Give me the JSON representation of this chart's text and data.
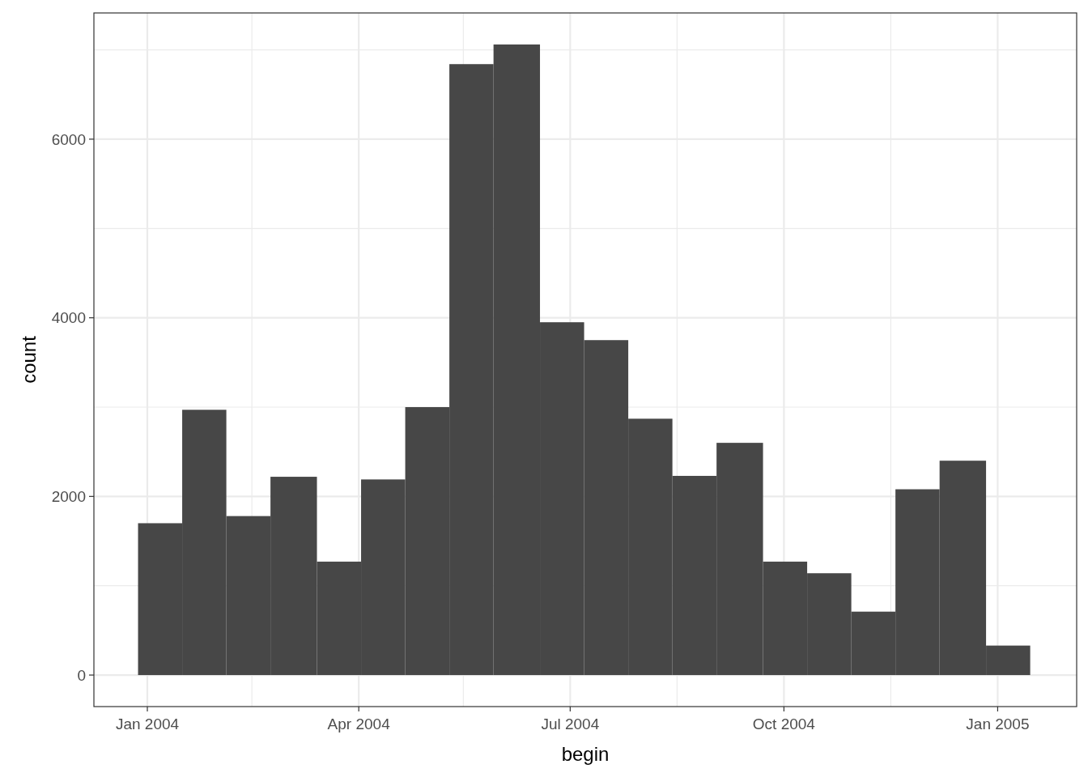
{
  "chart_data": {
    "type": "histogram",
    "xlabel": "begin",
    "ylabel": "count",
    "color": "#474747",
    "bins": [
      "2003-12-28",
      "2004-01-16",
      "2004-02-04",
      "2004-02-23",
      "2004-03-14",
      "2004-04-02",
      "2004-04-21",
      "2004-05-10",
      "2004-05-29",
      "2004-06-18",
      "2004-07-07",
      "2004-07-26",
      "2004-08-14",
      "2004-09-02",
      "2004-09-22",
      "2004-10-11",
      "2004-10-30",
      "2004-11-18",
      "2004-12-07",
      "2004-12-27",
      "2005-01-15"
    ],
    "values": [
      1700,
      2970,
      1780,
      2220,
      1270,
      2190,
      3000,
      6840,
      7060,
      3950,
      3750,
      2870,
      2230,
      2600,
      1270,
      1140,
      710,
      2080,
      2400,
      330
    ],
    "xlim": [
      "2003-12-09",
      "2005-02-04"
    ],
    "xticks": [
      {
        "value": "2004-01-01",
        "label": "Jan 2004"
      },
      {
        "value": "2004-02-15",
        "label": null
      },
      {
        "value": "2004-04-01",
        "label": "Apr 2004"
      },
      {
        "value": "2004-05-16",
        "label": null
      },
      {
        "value": "2004-07-01",
        "label": "Jul 2004"
      },
      {
        "value": "2004-08-16",
        "label": null
      },
      {
        "value": "2004-10-01",
        "label": "Oct 2004"
      },
      {
        "value": "2004-11-16",
        "label": null
      },
      {
        "value": "2005-01-01",
        "label": "Jan 2005"
      }
    ],
    "ylim": [
      -353,
      7413
    ],
    "yticks": [
      0,
      {
        "value": 1000,
        "label": null
      },
      2000,
      {
        "value": 3000,
        "label": null
      },
      4000,
      {
        "value": 5000,
        "label": null
      },
      6000,
      {
        "value": 7000,
        "label": null
      }
    ],
    "grid": true
  }
}
